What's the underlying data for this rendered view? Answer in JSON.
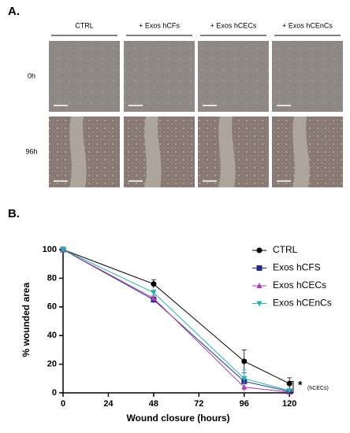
{
  "panel_a": {
    "label": "A.",
    "columns": [
      "CTRL",
      "+ Exos hCFs",
      "+ Exos hCECs",
      "+ Exos hCEnCs"
    ],
    "rows": [
      "0h",
      "96h"
    ]
  },
  "panel_b": {
    "label": "B."
  },
  "chart_data": {
    "type": "line",
    "x": [
      0,
      48,
      96,
      120
    ],
    "xlim": [
      0,
      122
    ],
    "xticks": [
      0,
      24,
      48,
      72,
      96,
      120
    ],
    "ylim": [
      0,
      102
    ],
    "yticks": [
      0,
      20,
      40,
      60,
      80,
      100
    ],
    "xlabel": "Wound closure (hours)",
    "ylabel": "% wounded area",
    "legend": "right",
    "series": [
      {
        "name": "CTRL",
        "color": "#000000",
        "marker": "circle",
        "values": [
          100,
          76,
          22,
          6.5
        ],
        "errors": [
          0,
          3,
          8,
          4
        ]
      },
      {
        "name": "Exos hCFS",
        "color": "#1f2a8a",
        "marker": "square",
        "values": [
          100,
          65,
          8,
          1
        ],
        "errors": [
          0,
          2,
          6,
          1
        ]
      },
      {
        "name": "Exos hCECs",
        "color": "#b03cb0",
        "marker": "triangle-up",
        "values": [
          100,
          66,
          4,
          0.5
        ],
        "errors": [
          0,
          2,
          3,
          1
        ]
      },
      {
        "name": "Exos hCEnCs",
        "color": "#1fb3b3",
        "marker": "triangle-down",
        "values": [
          100,
          70,
          10,
          1.5
        ],
        "errors": [
          0,
          2,
          6,
          1
        ]
      }
    ],
    "annotations": [
      "*",
      "(hCECs)"
    ]
  }
}
